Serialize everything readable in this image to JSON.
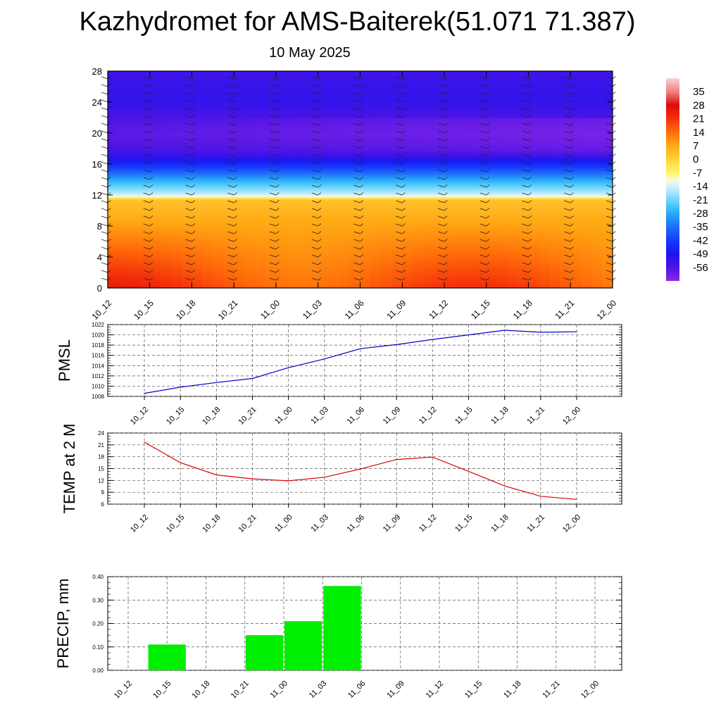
{
  "page": {
    "title": "Kazhydromet for AMS-Baiterek(51.071 71.387)",
    "subtitle": "10 May 2025"
  },
  "chart_data": [
    {
      "id": "cross-section",
      "type": "heatmap",
      "x": [
        "10_12",
        "10_15",
        "10_18",
        "10_21",
        "11_00",
        "11_03",
        "11_06",
        "11_09",
        "11_12",
        "11_15",
        "11_18",
        "11_21",
        "12_00"
      ],
      "ylim": [
        0,
        28
      ],
      "yticks": [
        0,
        4,
        8,
        12,
        16,
        20,
        24,
        28
      ],
      "colorbar": {
        "labels": [
          "35",
          "28",
          "21",
          "14",
          "7",
          "0",
          "-7",
          "-14",
          "-21",
          "-28",
          "-35",
          "-42",
          "-49",
          "-56"
        ],
        "min": -63,
        "max": 42
      },
      "profile": {
        "heights": [
          0,
          4,
          8,
          11.4,
          12,
          14,
          16,
          17,
          18,
          20,
          22,
          24,
          28
        ],
        "temperatures": [
          20,
          14,
          8,
          3,
          -14,
          -28,
          -45,
          -52,
          -56,
          -58,
          -56,
          -52,
          -54
        ]
      },
      "wind_barbs": true
    },
    {
      "id": "pmsl",
      "type": "line",
      "ylabel": "PMSL",
      "categories": [
        "10_12",
        "10_15",
        "10_18",
        "10_21",
        "11_00",
        "11_03",
        "11_06",
        "11_09",
        "11_12",
        "11_15",
        "11_18",
        "11_21",
        "12_00"
      ],
      "values": [
        1008.6,
        1009.8,
        1010.7,
        1011.5,
        1013.6,
        1015.3,
        1017.3,
        1018.1,
        1019.1,
        1020.0,
        1020.9,
        1020.5,
        1020.6
      ],
      "yticks": [
        "1008",
        "1010",
        "1012",
        "1014",
        "1016",
        "1018",
        "1020",
        "1022"
      ],
      "ylim": [
        1008,
        1022
      ],
      "color": "#0000cc",
      "grid": true
    },
    {
      "id": "temp2m",
      "type": "line",
      "ylabel": "TEMP at 2 M",
      "categories": [
        "10_12",
        "10_15",
        "10_18",
        "10_21",
        "11_00",
        "11_03",
        "11_06",
        "11_09",
        "11_12",
        "11_15",
        "11_18",
        "11_21",
        "12_00"
      ],
      "values": [
        21.7,
        16.5,
        13.4,
        12.4,
        11.9,
        12.8,
        14.9,
        17.3,
        17.9,
        14.3,
        10.6,
        8.0,
        7.2
      ],
      "yticks": [
        "6",
        "9",
        "12",
        "15",
        "18",
        "21",
        "24"
      ],
      "ylim": [
        6,
        24
      ],
      "color": "#dd0000",
      "grid": true
    },
    {
      "id": "precip",
      "type": "bar",
      "ylabel": "PRECIP, mm",
      "categories": [
        "10_12",
        "10_15",
        "10_18",
        "10_21",
        "11_00",
        "11_03",
        "11_06",
        "11_09",
        "11_12",
        "11_15",
        "11_18",
        "11_21",
        "12_00"
      ],
      "values": [
        0,
        0.11,
        0,
        0,
        0.15,
        0.21,
        0.36,
        0,
        0,
        0,
        0,
        0,
        0
      ],
      "yticks": [
        "0.00",
        "0.10",
        "0.20",
        "0.30",
        "0.40"
      ],
      "ylim": [
        0,
        0.4
      ],
      "color": "#00ee00",
      "grid": true
    }
  ]
}
